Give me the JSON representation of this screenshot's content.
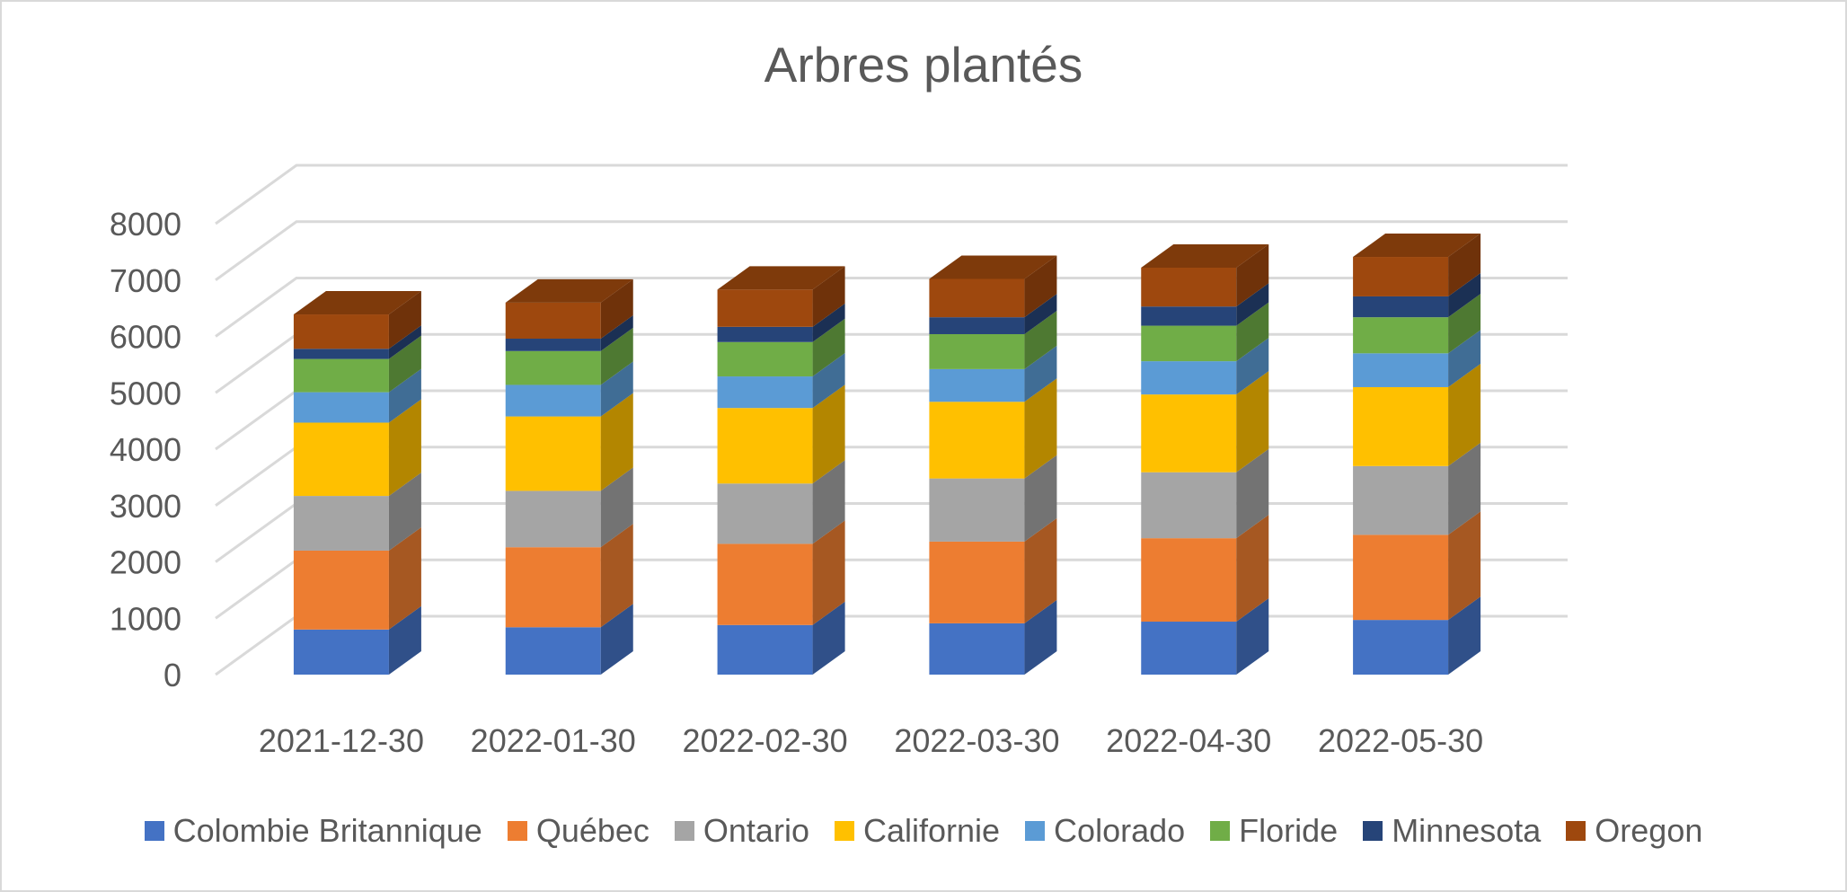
{
  "chart_data": {
    "type": "bar",
    "stacked": true,
    "style": "3d-column",
    "title": "Arbres plantés",
    "categories": [
      "2021-12-30",
      "2022-01-30",
      "2022-02-30",
      "2022-03-30",
      "2022-04-30",
      "2022-05-30"
    ],
    "ylim": [
      0,
      8000
    ],
    "yticks": [
      0,
      1000,
      2000,
      3000,
      4000,
      5000,
      6000,
      7000,
      8000
    ],
    "grid": true,
    "legend_position": "bottom",
    "series": [
      {
        "name": "Colombie Britannique",
        "color": "#4472C4",
        "values": [
          800,
          840,
          880,
          910,
          940,
          970
        ]
      },
      {
        "name": "Québec",
        "color": "#ED7D31",
        "values": [
          1400,
          1420,
          1440,
          1450,
          1480,
          1510
        ]
      },
      {
        "name": "Ontario",
        "color": "#A5A5A5",
        "values": [
          970,
          1000,
          1070,
          1120,
          1170,
          1220
        ]
      },
      {
        "name": "Californie",
        "color": "#FFC000",
        "values": [
          1300,
          1320,
          1340,
          1360,
          1380,
          1400
        ]
      },
      {
        "name": "Colorado",
        "color": "#5B9BD5",
        "values": [
          540,
          560,
          560,
          580,
          590,
          600
        ]
      },
      {
        "name": "Floride",
        "color": "#70AD47",
        "values": [
          590,
          600,
          610,
          620,
          630,
          640
        ]
      },
      {
        "name": "Minnesota",
        "color": "#264478",
        "values": [
          180,
          220,
          270,
          300,
          340,
          370
        ]
      },
      {
        "name": "Oregon",
        "color": "#9E480E",
        "values": [
          610,
          640,
          660,
          680,
          690,
          700
        ]
      }
    ]
  }
}
